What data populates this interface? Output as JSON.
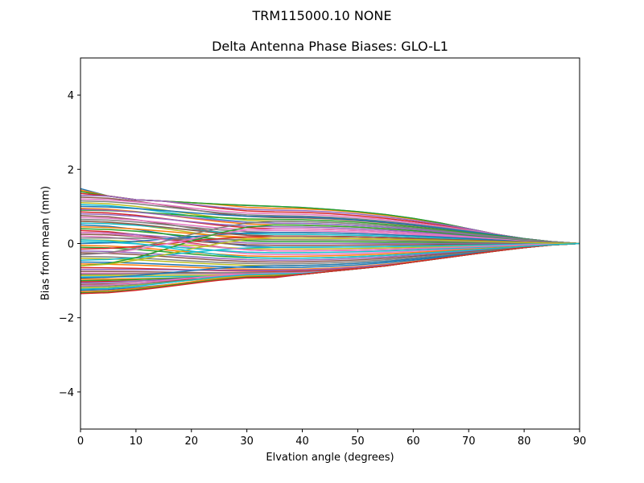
{
  "chart_data": {
    "type": "line",
    "suptitle": "TRM115000.10    NONE",
    "title": "Delta Antenna Phase Biases: GLO-L1",
    "xlabel": "Elvation angle (degrees)",
    "ylabel": "Bias from mean (mm)",
    "xlim": [
      0,
      90
    ],
    "ylim": [
      -5,
      5
    ],
    "xticks": [
      0,
      10,
      20,
      30,
      40,
      50,
      60,
      70,
      80,
      90
    ],
    "yticks": [
      -4,
      -2,
      0,
      2,
      4
    ],
    "ytick_labels": [
      "−4",
      "−2",
      "0",
      "2",
      "4"
    ],
    "grid": false,
    "legend": null,
    "x": [
      0,
      5,
      10,
      15,
      20,
      25,
      30,
      35,
      40,
      45,
      50,
      55,
      60,
      65,
      70,
      75,
      80,
      85,
      90
    ],
    "colors": [
      "#1f77b4",
      "#ff7f0e",
      "#2ca02c",
      "#d62728",
      "#9467bd",
      "#8c564b",
      "#e377c2",
      "#7f7f7f",
      "#bcbd22",
      "#17becf"
    ],
    "series_count": 70,
    "envelope": {
      "upper": [
        1.48,
        1.28,
        1.18,
        1.14,
        1.1,
        1.06,
        1.03,
        1.0,
        0.97,
        0.92,
        0.86,
        0.78,
        0.68,
        0.55,
        0.4,
        0.25,
        0.13,
        0.05,
        0.0
      ],
      "lower": [
        -1.35,
        -1.38,
        -1.4,
        -1.37,
        -1.27,
        -1.15,
        -1.02,
        -0.92,
        -0.83,
        -0.75,
        -0.68,
        -0.6,
        -0.5,
        -0.4,
        -0.3,
        -0.2,
        -0.11,
        -0.04,
        0.0
      ]
    },
    "series_start_values": [
      1.48,
      1.44,
      1.4,
      1.35,
      1.3,
      1.25,
      1.2,
      1.15,
      1.1,
      1.05,
      1.0,
      0.95,
      0.9,
      0.85,
      0.8,
      0.75,
      0.7,
      0.65,
      0.6,
      0.55,
      0.5,
      0.45,
      0.4,
      0.35,
      0.3,
      0.25,
      0.2,
      0.15,
      0.1,
      0.05,
      0.0,
      -0.05,
      -0.1,
      -0.15,
      -0.2,
      -0.25,
      -0.3,
      -0.35,
      -0.4,
      -0.45,
      -0.5,
      -0.55,
      -0.6,
      -0.65,
      -0.7,
      -0.75,
      -0.8,
      -0.83,
      -0.86,
      -0.9,
      -0.93,
      -0.96,
      -1.0,
      -1.03,
      -1.06,
      -1.1,
      -1.13,
      -1.16,
      -1.2,
      -1.23,
      -1.26,
      -1.3,
      -1.33,
      -1.35,
      0.92,
      0.6,
      0.3,
      -0.3,
      -0.6,
      0.1
    ],
    "series_mid_values": [
      1.0,
      0.95,
      1.02,
      0.85,
      0.9,
      0.7,
      0.8,
      0.75,
      0.6,
      0.55,
      0.72,
      0.5,
      0.65,
      0.4,
      0.45,
      0.2,
      0.35,
      0.3,
      0.1,
      0.25,
      -0.1,
      0.15,
      0.05,
      -0.2,
      0.0,
      -0.05,
      -0.3,
      0.1,
      -0.15,
      -0.25,
      0.3,
      -0.35,
      -0.4,
      0.2,
      -0.45,
      -0.5,
      0.4,
      -0.55,
      -0.6,
      -0.1,
      -0.65,
      -0.7,
      0.5,
      -0.75,
      -0.72,
      -0.8,
      -0.82,
      -0.78,
      -0.85,
      -0.88,
      -0.6,
      -0.9,
      -0.86,
      -0.92,
      -0.84,
      -0.9,
      -0.8,
      -0.88,
      -0.85,
      -0.82,
      -0.9,
      -0.86,
      -0.88,
      -0.9,
      0.55,
      0.2,
      -0.2,
      0.6,
      0.15,
      -0.4
    ]
  }
}
